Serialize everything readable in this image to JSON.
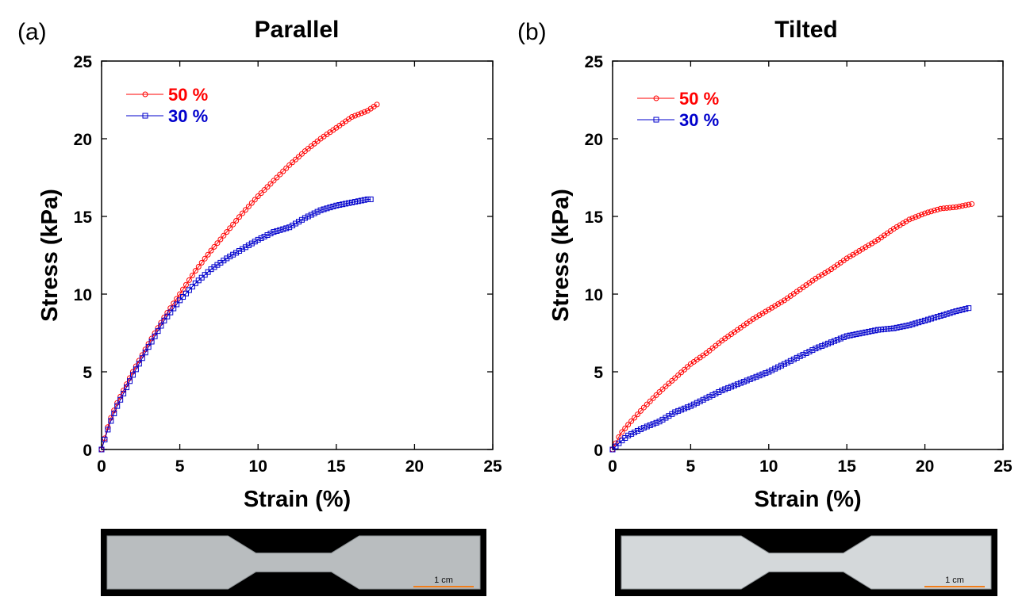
{
  "chart_data": [
    {
      "type": "line",
      "panel_label": "(a)",
      "title": "Parallel",
      "xlabel": "Strain (%)",
      "ylabel": "Stress (kPa)",
      "xlim": [
        0,
        25
      ],
      "ylim": [
        0,
        25
      ],
      "xticks": [
        "0",
        "5",
        "10",
        "15",
        "20",
        "25"
      ],
      "yticks": [
        "0",
        "5",
        "10",
        "15",
        "20",
        "25"
      ],
      "grid": false,
      "legend_position": "top-left",
      "photo_scale_label": "1 cm",
      "series": [
        {
          "name": "50 %",
          "color": "#ff0000",
          "marker": "circle",
          "x": [
            0,
            0.5,
            1,
            2,
            3,
            4,
            5,
            6,
            7,
            8,
            9,
            10,
            11,
            12,
            13,
            14,
            15,
            16,
            17,
            17.6
          ],
          "y": [
            0,
            1.8,
            3,
            5,
            6.8,
            8.5,
            10,
            11.5,
            12.8,
            14,
            15.2,
            16.3,
            17.3,
            18.3,
            19.2,
            20,
            20.7,
            21.4,
            21.8,
            22.2
          ]
        },
        {
          "name": "30 %",
          "color": "#0000cc",
          "marker": "square",
          "x": [
            0,
            0.5,
            1,
            2,
            3,
            4,
            5,
            6,
            7,
            8,
            9,
            10,
            11,
            12,
            13,
            14,
            15,
            16,
            17,
            17.2
          ],
          "y": [
            0,
            1.6,
            2.8,
            4.8,
            6.6,
            8.3,
            9.6,
            10.7,
            11.6,
            12.3,
            12.9,
            13.5,
            14,
            14.3,
            14.9,
            15.4,
            15.7,
            15.9,
            16.1,
            16.1
          ]
        }
      ]
    },
    {
      "type": "line",
      "panel_label": "(b)",
      "title": "Tilted",
      "xlabel": "Strain (%)",
      "ylabel": "Stress (kPa)",
      "xlim": [
        0,
        25
      ],
      "ylim": [
        0,
        25
      ],
      "xticks": [
        "0",
        "5",
        "10",
        "15",
        "20",
        "25"
      ],
      "yticks": [
        "0",
        "5",
        "10",
        "15",
        "20",
        "25"
      ],
      "grid": false,
      "legend_position": "top-left",
      "photo_scale_label": "1 cm",
      "series": [
        {
          "name": "50 %",
          "color": "#ff0000",
          "marker": "circle",
          "x": [
            0,
            0.5,
            1,
            2,
            3,
            4,
            5,
            6,
            7,
            8,
            9,
            10,
            11,
            12,
            13,
            14,
            15,
            16,
            17,
            18,
            19,
            20,
            21,
            22,
            23
          ],
          "y": [
            0,
            1,
            1.6,
            2.7,
            3.7,
            4.6,
            5.5,
            6.2,
            7,
            7.7,
            8.4,
            9,
            9.6,
            10.3,
            11,
            11.6,
            12.3,
            12.9,
            13.5,
            14.2,
            14.8,
            15.2,
            15.5,
            15.6,
            15.8
          ]
        },
        {
          "name": "30 %",
          "color": "#0000cc",
          "marker": "square",
          "x": [
            0,
            0.5,
            1,
            2,
            3,
            4,
            5,
            6,
            7,
            8,
            9,
            10,
            11,
            12,
            13,
            14,
            15,
            16,
            17,
            18,
            19,
            20,
            21,
            22,
            22.8
          ],
          "y": [
            0,
            0.5,
            0.9,
            1.4,
            1.8,
            2.4,
            2.8,
            3.3,
            3.8,
            4.2,
            4.6,
            5,
            5.5,
            6,
            6.5,
            6.9,
            7.3,
            7.5,
            7.7,
            7.8,
            8,
            8.3,
            8.6,
            8.9,
            9.1
          ]
        }
      ]
    }
  ]
}
